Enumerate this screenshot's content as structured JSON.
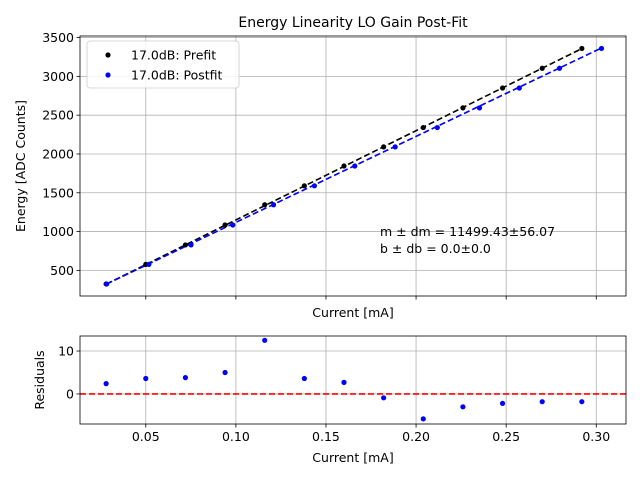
{
  "chart_data": [
    {
      "type": "scatter",
      "title": "Energy Linearity LO Gain Post-Fit",
      "xlabel": "Current [mA]",
      "ylabel": "Energy [ADC Counts]",
      "xlim": [
        0.0135,
        0.3165
      ],
      "ylim": [
        170,
        3520
      ],
      "xticks_show_labels": false,
      "yticks": [
        500,
        1000,
        1500,
        2000,
        2500,
        3000,
        3500
      ],
      "ytick_labels": [
        "500",
        "1000",
        "1500",
        "2000",
        "2500",
        "3000",
        "3500"
      ],
      "grid": true,
      "legend_position": "top-left",
      "series": [
        {
          "name": "17.0dB: Prefit",
          "color": "#000000",
          "x": [
            0.028,
            0.05,
            0.072,
            0.094,
            0.116,
            0.138,
            0.16,
            0.182,
            0.204,
            0.226,
            0.248,
            0.27,
            0.292
          ],
          "y": [
            325,
            577,
            828,
            1085,
            1346,
            1590,
            1845,
            2091,
            2340,
            2594,
            2850,
            3104,
            3360
          ],
          "fit_x": [
            0.028,
            0.292
          ],
          "fit_y": [
            322,
            3358
          ],
          "fit_color": "#000000"
        },
        {
          "name": "17.0dB: Postfit",
          "color": "#0000ff",
          "x": [
            0.0283,
            0.0517,
            0.0751,
            0.0983,
            0.1209,
            0.1436,
            0.166,
            0.1884,
            0.2118,
            0.2352,
            0.2573,
            0.2796,
            0.3029
          ],
          "y": [
            325,
            577,
            828,
            1085,
            1346,
            1590,
            1845,
            2091,
            2340,
            2594,
            2850,
            3104,
            3360
          ],
          "fit_x": [
            0.0283,
            0.3029
          ],
          "fit_y": [
            325,
            3366
          ],
          "fit_color": "#0000ff"
        }
      ],
      "annotation_lines": [
        "m ± dm = 11499.43±56.07",
        "b ± db = 0.0±0.0"
      ]
    },
    {
      "type": "scatter",
      "title": "",
      "xlabel": "Current [mA]",
      "ylabel": "Residuals",
      "xlim": [
        0.0135,
        0.3165
      ],
      "ylim": [
        -7,
        13.5
      ],
      "xticks": [
        0.05,
        0.1,
        0.15,
        0.2,
        0.25,
        0.3
      ],
      "xtick_labels": [
        "0.05",
        "0.10",
        "0.15",
        "0.20",
        "0.25",
        "0.30"
      ],
      "yticks": [
        0,
        10
      ],
      "ytick_labels": [
        "0",
        "10"
      ],
      "grid": true,
      "reference_line": {
        "y": 0,
        "color": "#ff0000",
        "style": "dashed"
      },
      "series": [
        {
          "name": "residuals",
          "color": "#0000ff",
          "x": [
            0.028,
            0.05,
            0.072,
            0.094,
            0.116,
            0.138,
            0.16,
            0.182,
            0.204,
            0.226,
            0.248,
            0.27,
            0.292
          ],
          "y": [
            2.4,
            3.6,
            3.8,
            5.0,
            12.5,
            3.6,
            2.7,
            -0.9,
            -5.8,
            -3.0,
            -2.2,
            -1.8,
            -1.8
          ]
        }
      ]
    }
  ]
}
